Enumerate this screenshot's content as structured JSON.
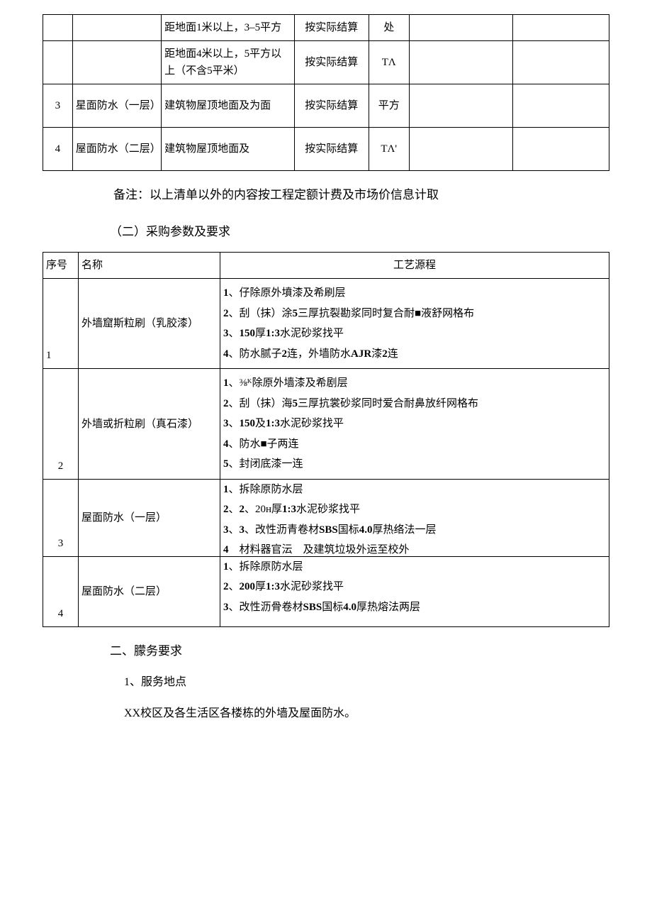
{
  "table1": {
    "rows": [
      {
        "c0": "",
        "c1": "",
        "c2": "距地面1米以上，3–5平方",
        "c3": "按实际结算",
        "c4": "处",
        "c5": "",
        "c6": ""
      },
      {
        "c0": "",
        "c1": "",
        "c2": "距地面4米以上，5平方以上（不含5平米）",
        "c3": "按实际结算",
        "c4": "TΛ",
        "c5": "",
        "c6": ""
      },
      {
        "c0": "3",
        "c1": "星面防水（一层）",
        "c2": "建筑物屋顶地面及为面",
        "c3": "按实际结算",
        "c4": "平方",
        "c5": "",
        "c6": ""
      },
      {
        "c0": "4",
        "c1": "屋面防水（二层）",
        "c2": "建筑物屋顶地面及",
        "c3": "按实际结算",
        "c4": "TΛ'",
        "c5": "",
        "c6": ""
      }
    ]
  },
  "note": "备注：以上清单以外的内容按工程定额计费及市场价信息计取",
  "section2_title": "（二）采购参数及要求",
  "table2": {
    "header": {
      "col0": "序号",
      "col1": "名称",
      "col2": "工艺源程"
    },
    "rows": [
      {
        "seq": "1",
        "name": "外墙窟斯粒刷（乳胶漆）",
        "process": "<b>1</b>、仔除原外墳漆及希刷层<br><b>2</b>、刮（抹）涂<b>5</b>三厚抗裂勘浆同时复合耐■液舒网格布<br><b>3</b>、<b>150</b>厚<b>1:3</b>水泥砂浆找平<br><b>4</b>、防水腻子<b>2</b>连，外墙防水<b>AJR</b>漆<b>2</b>连"
      },
      {
        "seq": "2",
        "name": "外墙或折粒刷（真石漆）",
        "process": "<b>1</b>、⅜ᴷ除原外墙漆及希剧层<br><b>2</b>、刮（抹）海<b>5</b>三厚抗裳砂浆同时爱合耐鼻放纤网格布<br><b>3</b>、<b>150</b>及<b>1:3</b>水泥砂浆找平<br><b>4</b>、防水■子两连<br><b>5</b>、封闭底漆一连"
      },
      {
        "seq": "3",
        "name": "屋面防水（一层）",
        "process": "<b>1</b>、拆除原防水层<br><b>2</b>、<b>2</b>、20ʜ厚<b>1:3</b>水泥砂浆找平<br><b>3</b>、<b>3</b>、改性沥青卷材<b>SBS</b>国标<b>4.0</b>厚热络法一层<br><b>4</b>　材料器官沄　及建筑垃圾外运至校外"
      },
      {
        "seq": "4",
        "name": "屋面防水（二层）",
        "process": "<b>1</b>、拆除原防水层<br><b>2</b>、<b>200</b>厚<b>1:3</b>水泥砂浆找平<br><b>3</b>、改性沥骨卷材<b>SBS</b>国标<b>4.0</b>厚热熔法两层<br>"
      }
    ]
  },
  "heading2": "二、朦务要求",
  "sub1": "1、服务地点",
  "body1": "XX校区及各生活区各楼栋的外墙及屋面防水。"
}
